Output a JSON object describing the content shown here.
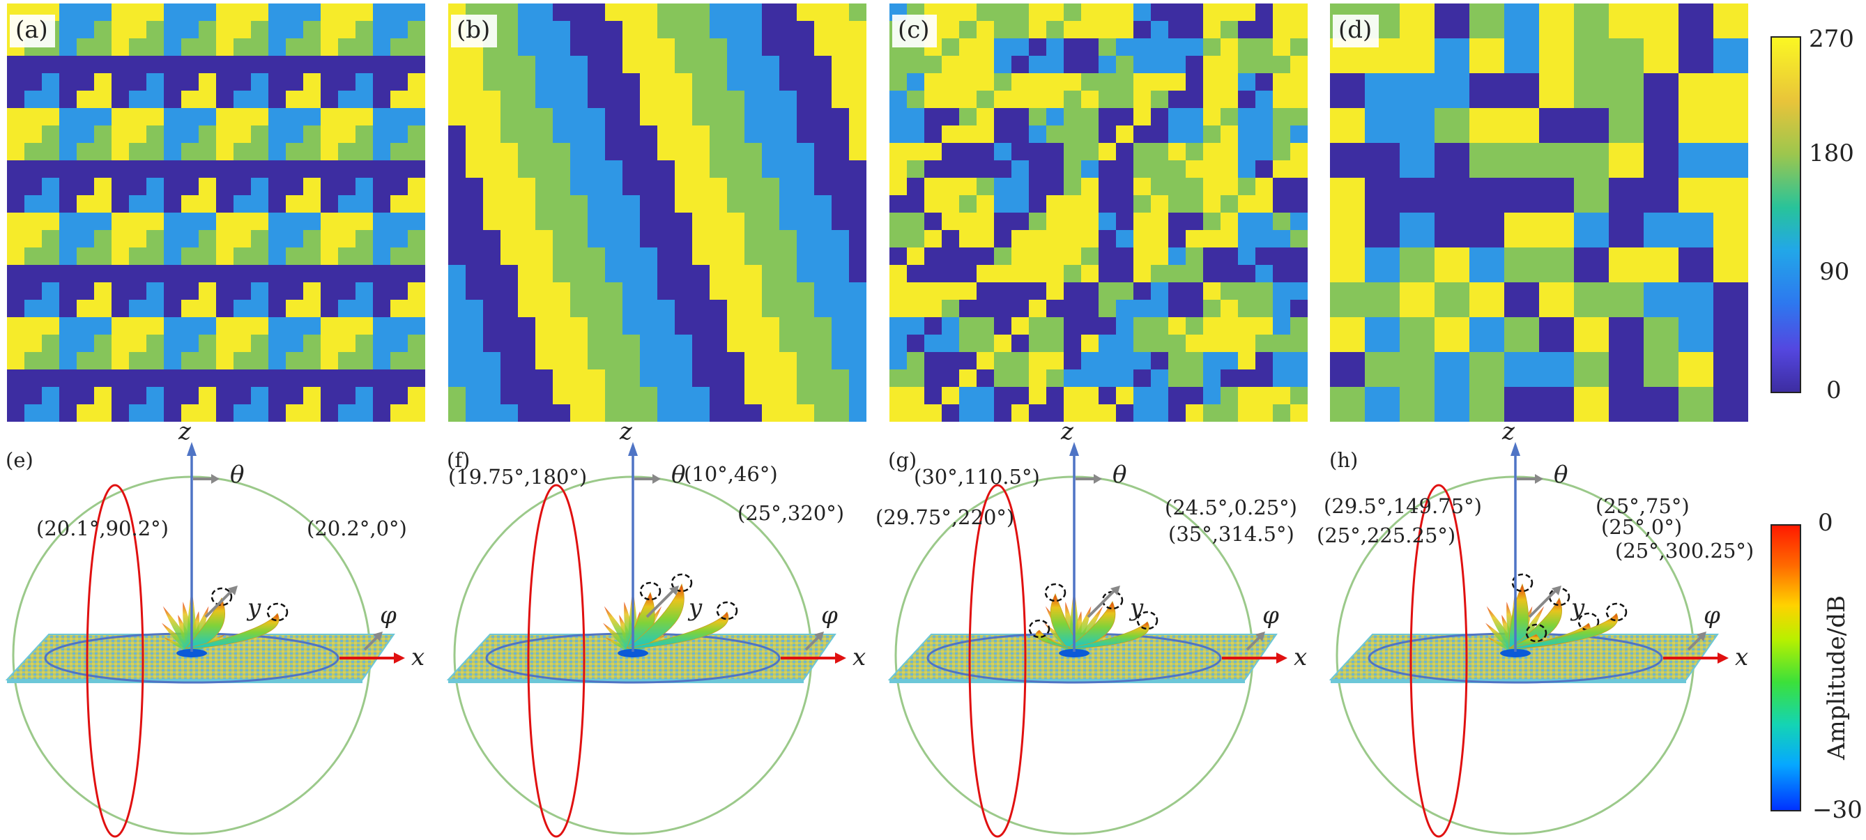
{
  "phase_panels": [
    {
      "label": "(a)"
    },
    {
      "label": "(b)"
    },
    {
      "label": "(c)"
    },
    {
      "label": "(d)"
    }
  ],
  "phase_colorbar": {
    "ticks": [
      "270",
      "180",
      "90",
      "0"
    ],
    "colors": [
      "#f6eb2a",
      "#86c55a",
      "#2f97e5",
      "#3d2da1"
    ]
  },
  "beam_panels": [
    {
      "label": "(e)",
      "beams": [
        {
          "text": "(20.1°,90.2°)"
        },
        {
          "text": "(20.2°,0°)"
        }
      ]
    },
    {
      "label": "(f)",
      "beams": [
        {
          "text": "(19.75°,180°)"
        },
        {
          "text": "(10°,46°)"
        },
        {
          "text": "(25°,320°)"
        }
      ]
    },
    {
      "label": "(g)",
      "beams": [
        {
          "text": "(30°,110.5°)"
        },
        {
          "text": "(29.75°,220°)"
        },
        {
          "text": "(24.5°,0.25°)"
        },
        {
          "text": "(35°,314.5°)"
        }
      ]
    },
    {
      "label": "(h)",
      "beams": [
        {
          "text": "(29.5°,149.75°)"
        },
        {
          "text": "(25°,225.25°)"
        },
        {
          "text": "(25°,75°)"
        },
        {
          "text": "(25°,0°)"
        },
        {
          "text": "(25°,300.25°)"
        }
      ]
    }
  ],
  "axis_labels": {
    "z": "z",
    "theta": "θ",
    "y": "y",
    "x": "x",
    "phi": "φ"
  },
  "amp_colorbar": {
    "label": "Amplitude/dB",
    "ticks": [
      "0",
      "−30"
    ]
  }
}
